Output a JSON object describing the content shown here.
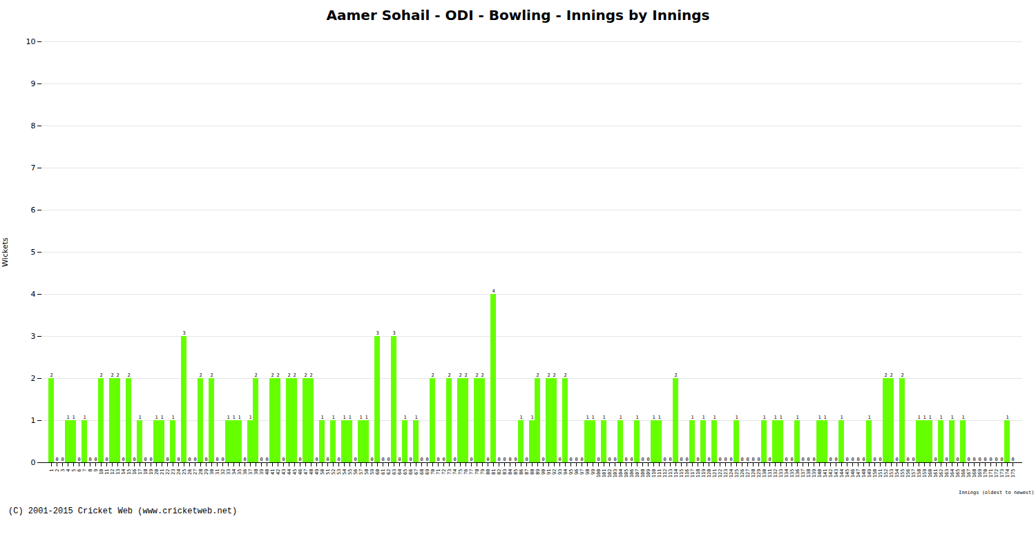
{
  "chart_data": {
    "type": "bar",
    "title": "Aamer Sohail - ODI - Bowling - Innings by Innings",
    "xlabel": "Innings (oldest to newest)",
    "ylabel": "Wickets",
    "annotations": [
      "(C) 2001-2015 Cricket Web (www.cricketweb.net)"
    ],
    "categories": [
      "1",
      "2",
      "3",
      "4",
      "5",
      "6",
      "7",
      "8",
      "9",
      "10",
      "11",
      "12",
      "13",
      "14",
      "15",
      "16",
      "17",
      "18",
      "19",
      "20",
      "21",
      "22",
      "23",
      "24",
      "25",
      "26",
      "27",
      "28",
      "29",
      "30",
      "31",
      "32",
      "33",
      "34",
      "35",
      "36",
      "37",
      "38",
      "39",
      "40",
      "41",
      "42",
      "43",
      "44",
      "45",
      "46",
      "47",
      "48",
      "49",
      "50",
      "51",
      "52",
      "53",
      "54",
      "55",
      "56",
      "57",
      "58",
      "59",
      "60",
      "61",
      "62",
      "63",
      "64",
      "65",
      "66",
      "67",
      "68",
      "69",
      "70",
      "71",
      "72",
      "73",
      "74",
      "75",
      "76",
      "77",
      "78",
      "79",
      "80",
      "81",
      "82",
      "83",
      "84",
      "85",
      "86",
      "87",
      "88",
      "89",
      "90",
      "91",
      "92",
      "93",
      "94",
      "95",
      "96",
      "97",
      "98",
      "99",
      "100",
      "101",
      "102",
      "103",
      "104",
      "105",
      "106",
      "107",
      "108",
      "109",
      "110",
      "111",
      "112",
      "113",
      "114",
      "115",
      "116",
      "117",
      "118",
      "119",
      "120",
      "121",
      "122",
      "123",
      "124",
      "125",
      "126",
      "127",
      "128",
      "129",
      "130",
      "131",
      "132",
      "133",
      "134",
      "135",
      "136",
      "137",
      "138",
      "139",
      "140",
      "141",
      "142",
      "143",
      "144",
      "145",
      "146",
      "147",
      "148",
      "149",
      "150",
      "151",
      "152",
      "153",
      "154",
      "155",
      "156",
      "157",
      "158",
      "159",
      "160",
      "161",
      "162",
      "163",
      "164",
      "165",
      "166",
      "167",
      "168",
      "169",
      "170",
      "171",
      "172",
      "173",
      "174",
      "175"
    ],
    "values": [
      2,
      0,
      0,
      1,
      1,
      0,
      1,
      0,
      0,
      2,
      0,
      2,
      2,
      0,
      2,
      0,
      1,
      0,
      0,
      1,
      1,
      0,
      1,
      0,
      3,
      0,
      0,
      2,
      0,
      2,
      0,
      0,
      1,
      1,
      1,
      0,
      1,
      2,
      0,
      0,
      2,
      2,
      0,
      2,
      2,
      0,
      2,
      2,
      0,
      1,
      0,
      1,
      0,
      1,
      1,
      0,
      1,
      1,
      0,
      3,
      0,
      0,
      3,
      0,
      1,
      0,
      1,
      0,
      0,
      2,
      0,
      0,
      2,
      0,
      2,
      2,
      0,
      2,
      2,
      0,
      4,
      0,
      0,
      0,
      0,
      1,
      0,
      1,
      2,
      0,
      2,
      2,
      0,
      2,
      0,
      0,
      0,
      1,
      1,
      0,
      1,
      0,
      0,
      1,
      0,
      0,
      1,
      0,
      0,
      1,
      1,
      0,
      0,
      2,
      0,
      0,
      1,
      0,
      1,
      0,
      1,
      0,
      0,
      0,
      1,
      0,
      0,
      0,
      0,
      1,
      0,
      1,
      1,
      0,
      0,
      1,
      0,
      0,
      0,
      1,
      1,
      0,
      0,
      1,
      0,
      0,
      0,
      0,
      1,
      0,
      0,
      2,
      2,
      0,
      2,
      0,
      0,
      1,
      1,
      1,
      0,
      1,
      0,
      1,
      0,
      1,
      0,
      0,
      0,
      0,
      0,
      0,
      0,
      1,
      0
    ],
    "color": "#66ff00",
    "ylim": [
      0,
      10
    ],
    "yticks": [
      0,
      1,
      2,
      3,
      4,
      5,
      6,
      7,
      8,
      9,
      10
    ],
    "grid": true,
    "data_labels": true
  }
}
